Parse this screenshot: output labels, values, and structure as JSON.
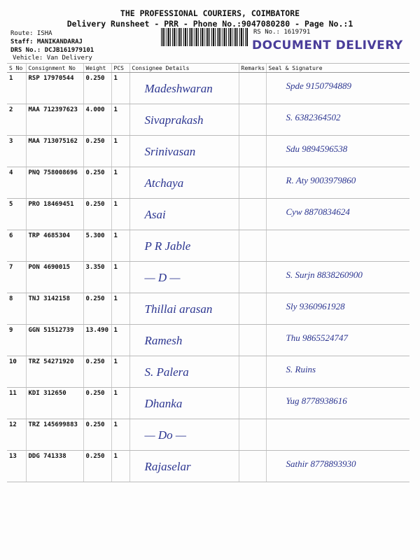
{
  "header": {
    "company": "THE PROFESSIONAL COURIERS, COIMBATORE",
    "subtitle": "Delivery Runsheet - PRR - Phone No.:9047080280 - Page No.:1",
    "route": "Route: ISHA",
    "staff": "Staff: MANIKANDARAJ",
    "drs": "DRS No.: DCJB161979101",
    "vehicle": "Vehicle: Van Delivery",
    "rs_no": "RS No.: 1619791",
    "stamp": "DOCUMENT DELIVERY"
  },
  "columns": [
    "S No",
    "Consignment No",
    "Weight",
    "PCS",
    "Consignee Details",
    "Remarks",
    "Seal & Signature"
  ],
  "rows": [
    {
      "sno": "1",
      "cn": "RSP 17970544",
      "wt": "0.250",
      "pcs": "1",
      "consignee": "Madeshwaran",
      "sig": "Spde 9150794889"
    },
    {
      "sno": "2",
      "cn": "MAA 712397623",
      "wt": "4.000",
      "pcs": "1",
      "consignee": "Sivaprakash",
      "sig": "S. 6382364502"
    },
    {
      "sno": "3",
      "cn": "MAA 713075162",
      "wt": "0.250",
      "pcs": "1",
      "consignee": "Srinivasan",
      "sig": "Sdu 9894596538"
    },
    {
      "sno": "4",
      "cn": "PNQ 758008696",
      "wt": "0.250",
      "pcs": "1",
      "consignee": "Atchaya",
      "sig": "R. Aty 9003979860"
    },
    {
      "sno": "5",
      "cn": "PRO 18469451",
      "wt": "0.250",
      "pcs": "1",
      "consignee": "Asai",
      "sig": "Cyw 8870834624"
    },
    {
      "sno": "6",
      "cn": "TRP 4685304",
      "wt": "5.300",
      "pcs": "1",
      "consignee": "P R Jable",
      "sig": ""
    },
    {
      "sno": "7",
      "cn": "PON 4690015",
      "wt": "3.350",
      "pcs": "1",
      "consignee": "— D —",
      "sig": "S. Surjn 8838260900"
    },
    {
      "sno": "8",
      "cn": "TNJ 3142158",
      "wt": "0.250",
      "pcs": "1",
      "consignee": "Thillai arasan",
      "sig": "Sly 9360961928"
    },
    {
      "sno": "9",
      "cn": "GGN 51512739",
      "wt": "13.490",
      "pcs": "1",
      "consignee": "Ramesh",
      "sig": "Thu 9865524747"
    },
    {
      "sno": "10",
      "cn": "TRZ 54271920",
      "wt": "0.250",
      "pcs": "1",
      "consignee": "S. Palera",
      "sig": "S. Ruins"
    },
    {
      "sno": "11",
      "cn": "KDI 312650",
      "wt": "0.250",
      "pcs": "1",
      "consignee": "Dhanka",
      "sig": "Yug 8778938616"
    },
    {
      "sno": "12",
      "cn": "TRZ 145699883",
      "wt": "0.250",
      "pcs": "1",
      "consignee": "— Do —",
      "sig": ""
    },
    {
      "sno": "13",
      "cn": "DDG 741338",
      "wt": "0.250",
      "pcs": "1",
      "consignee": "Rajaselar",
      "sig": "Sathir 8778893930"
    }
  ]
}
